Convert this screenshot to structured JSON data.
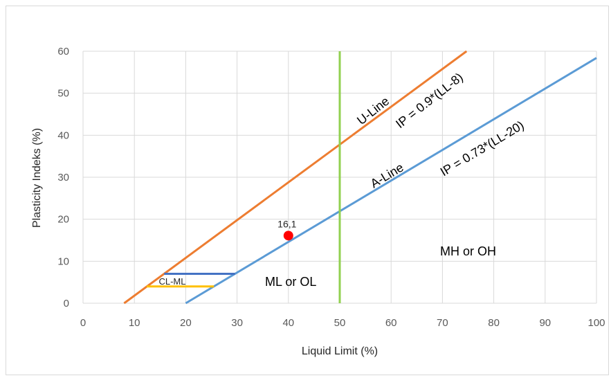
{
  "chart_data": {
    "type": "line",
    "xlabel": "Liquid Limit (%)",
    "ylabel": "Plasticity Indeks (%)",
    "xlim": [
      0,
      100
    ],
    "ylim": [
      0,
      60
    ],
    "x_ticks": [
      0,
      10,
      20,
      30,
      40,
      50,
      60,
      70,
      80,
      90,
      100
    ],
    "y_ticks": [
      0,
      10,
      20,
      30,
      40,
      50,
      60
    ],
    "grid": true,
    "legend": "none",
    "series": [
      {
        "color": "#ED7D31",
        "x": [
          8,
          74.7
        ],
        "y": [
          0,
          60
        ]
      },
      {
        "color": "#5B9BD5",
        "x": [
          20,
          100
        ],
        "y": [
          0,
          58.4
        ]
      },
      {
        "color": "#92D050",
        "x": [
          50,
          50
        ],
        "y": [
          0,
          60
        ]
      },
      {
        "color": "#4472C4",
        "x": [
          15.8,
          29.6
        ],
        "y": [
          7,
          7
        ]
      },
      {
        "color": "#FFC000",
        "x": [
          12.4,
          25.5
        ],
        "y": [
          4,
          4
        ]
      }
    ],
    "point": {
      "x": 40,
      "y": 16.1,
      "label": "16,1",
      "color": "#FF0000"
    },
    "annotations": {
      "u_line": "U-Line",
      "u_eq": "IP = 0.9*(LL-8)",
      "a_line": "A-Line",
      "a_eq": "IP = 0.73*(LL-20)",
      "cl_ml": "CL-ML",
      "ml_ol": "ML or OL",
      "mh_oh": "MH or OH"
    }
  }
}
